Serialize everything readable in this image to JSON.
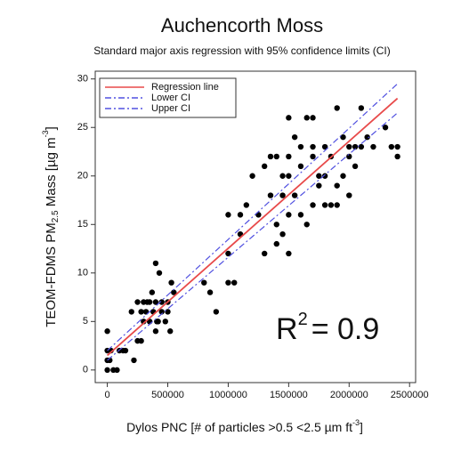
{
  "chart_data": {
    "type": "scatter",
    "title": "Auchencorth Moss",
    "subtitle": "Standard major axis regression with 95% confidence limits (CI)",
    "ylabel": [
      "TEOM-FDMS PM",
      "2.5",
      "  Mass [µg m",
      "-3",
      "]"
    ],
    "xlabel": [
      "Dylos PNC [# of particles >0.5 <2.5 µm ft",
      "-3",
      "]"
    ],
    "annotation": [
      "R",
      "2",
      "= 0.9"
    ],
    "xlim": [
      -100000,
      2550000
    ],
    "ylim": [
      -1.3,
      30.8
    ],
    "xticks": [
      0,
      500000,
      1000000,
      1500000,
      2000000,
      2500000
    ],
    "yticks": [
      0,
      5,
      10,
      15,
      20,
      25,
      30
    ],
    "grid": false,
    "legend": "upper left",
    "points": {
      "color": "#000000",
      "x": [
        0,
        0,
        0,
        0,
        20000,
        30000,
        50000,
        80000,
        100000,
        130000,
        150000,
        200000,
        220000,
        250000,
        250000,
        280000,
        300000,
        300000,
        330000,
        350000,
        350000,
        380000,
        400000,
        400000,
        400000,
        420000,
        430000,
        450000,
        450000,
        480000,
        500000,
        500000,
        520000,
        530000,
        550000,
        280000,
        320000,
        370000,
        410000,
        800000,
        850000,
        900000,
        1000000,
        1000000,
        1050000,
        1000000,
        1100000,
        1100000,
        1150000,
        1200000,
        1250000,
        1300000,
        1300000,
        1350000,
        1350000,
        1400000,
        1400000,
        1400000,
        1450000,
        1450000,
        1450000,
        1500000,
        1500000,
        1500000,
        1500000,
        1500000,
        1550000,
        1550000,
        1600000,
        1600000,
        1600000,
        1650000,
        1650000,
        1700000,
        1700000,
        1700000,
        1700000,
        1750000,
        1750000,
        1800000,
        1800000,
        1850000,
        1850000,
        1900000,
        1900000,
        1900000,
        1950000,
        1950000,
        2000000,
        2000000,
        2050000,
        2050000,
        2100000,
        2100000,
        2150000,
        2200000,
        2300000,
        2350000,
        2400000,
        2400000,
        2000000,
        1800000
      ],
      "values": [
        0,
        1,
        2,
        4,
        1,
        2,
        0,
        0,
        2,
        2,
        2,
        6,
        1,
        3,
        7,
        6,
        5,
        7,
        7,
        5,
        7,
        6,
        4,
        7,
        11,
        5,
        10,
        6,
        7,
        5,
        6,
        7,
        4,
        9,
        8,
        3,
        6,
        8,
        5,
        9,
        8,
        6,
        12,
        16,
        9,
        9,
        16,
        14,
        17,
        20,
        16,
        12,
        21,
        18,
        22,
        22,
        13,
        15,
        14,
        18,
        20,
        12,
        20,
        22,
        26,
        16,
        18,
        24,
        16,
        21,
        23,
        15,
        26,
        26,
        17,
        22,
        23,
        19,
        20,
        17,
        23,
        17,
        22,
        17,
        27,
        19,
        20,
        24,
        18,
        23,
        21,
        23,
        27,
        23,
        24,
        23,
        25,
        23,
        22,
        23,
        22,
        20
      ]
    },
    "series": [
      {
        "name": "Regression line",
        "color": "#e84a4a",
        "style": "solid",
        "x": [
          0,
          2400000
        ],
        "values": [
          1.5,
          28
        ]
      },
      {
        "name": "Lower CI",
        "color": "#5050e0",
        "style": "dashdot",
        "x": [
          0,
          2400000
        ],
        "values": [
          1,
          26.5
        ]
      },
      {
        "name": "Upper CI",
        "color": "#5050e0",
        "style": "dashdot",
        "x": [
          0,
          2400000
        ],
        "values": [
          2,
          29.5
        ]
      }
    ]
  }
}
